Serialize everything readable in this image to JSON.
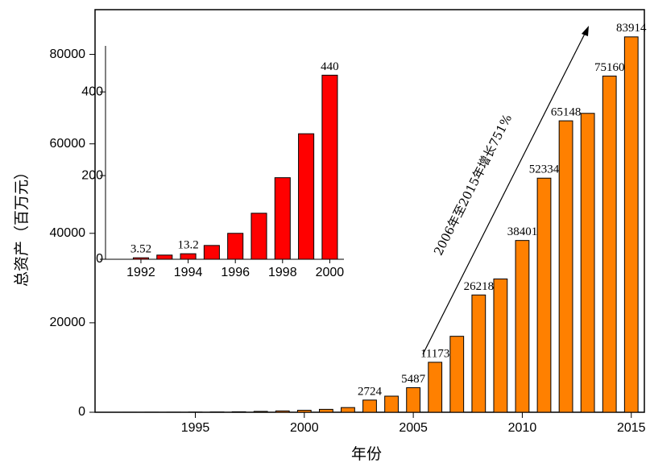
{
  "chart_data": [
    {
      "type": "bar",
      "xlabel": "年份",
      "ylabel": "总资产（百万元）",
      "annotation": "2006年至2015年增长751%",
      "x": [
        1992,
        1993,
        1994,
        1995,
        1996,
        1997,
        1998,
        1999,
        2000,
        2001,
        2002,
        2003,
        2004,
        2005,
        2006,
        2007,
        2008,
        2009,
        2010,
        2011,
        2012,
        2013,
        2014,
        2015
      ],
      "values": [
        3.52,
        10,
        13.2,
        33,
        62,
        110,
        195,
        300,
        440,
        650,
        1050,
        2724,
        3600,
        5487,
        11173,
        16980,
        26218,
        29800,
        38401,
        52334,
        65148,
        66820,
        75160,
        83914
      ],
      "value_labels": [
        null,
        null,
        null,
        null,
        null,
        null,
        null,
        null,
        null,
        null,
        null,
        "2724",
        null,
        "5487",
        "11173",
        null,
        "26218",
        null,
        "38401",
        "52334",
        "65148",
        null,
        "75160",
        "83914"
      ],
      "color": "#ff8000",
      "xlim": [
        1990.4,
        2015.6
      ],
      "xticks": [
        1995,
        2000,
        2005,
        2010,
        2015
      ],
      "ylim": [
        0,
        90000
      ],
      "yticks": [
        0,
        20000,
        40000,
        60000,
        80000
      ]
    },
    {
      "type": "bar",
      "x": [
        1992,
        1993,
        1994,
        1995,
        1996,
        1997,
        1998,
        1999,
        2000
      ],
      "values": [
        3.52,
        10,
        13.2,
        33,
        62,
        110,
        195,
        300,
        440
      ],
      "value_labels": [
        "3.52",
        null,
        "13.2",
        null,
        null,
        null,
        null,
        null,
        "440"
      ],
      "color": "#ff0000",
      "xlim": [
        1990.5,
        2000.6
      ],
      "xticks": [
        1992,
        1994,
        1996,
        1998,
        2000
      ],
      "ylim": [
        0,
        510
      ],
      "yticks": [
        0,
        200,
        400
      ]
    }
  ]
}
